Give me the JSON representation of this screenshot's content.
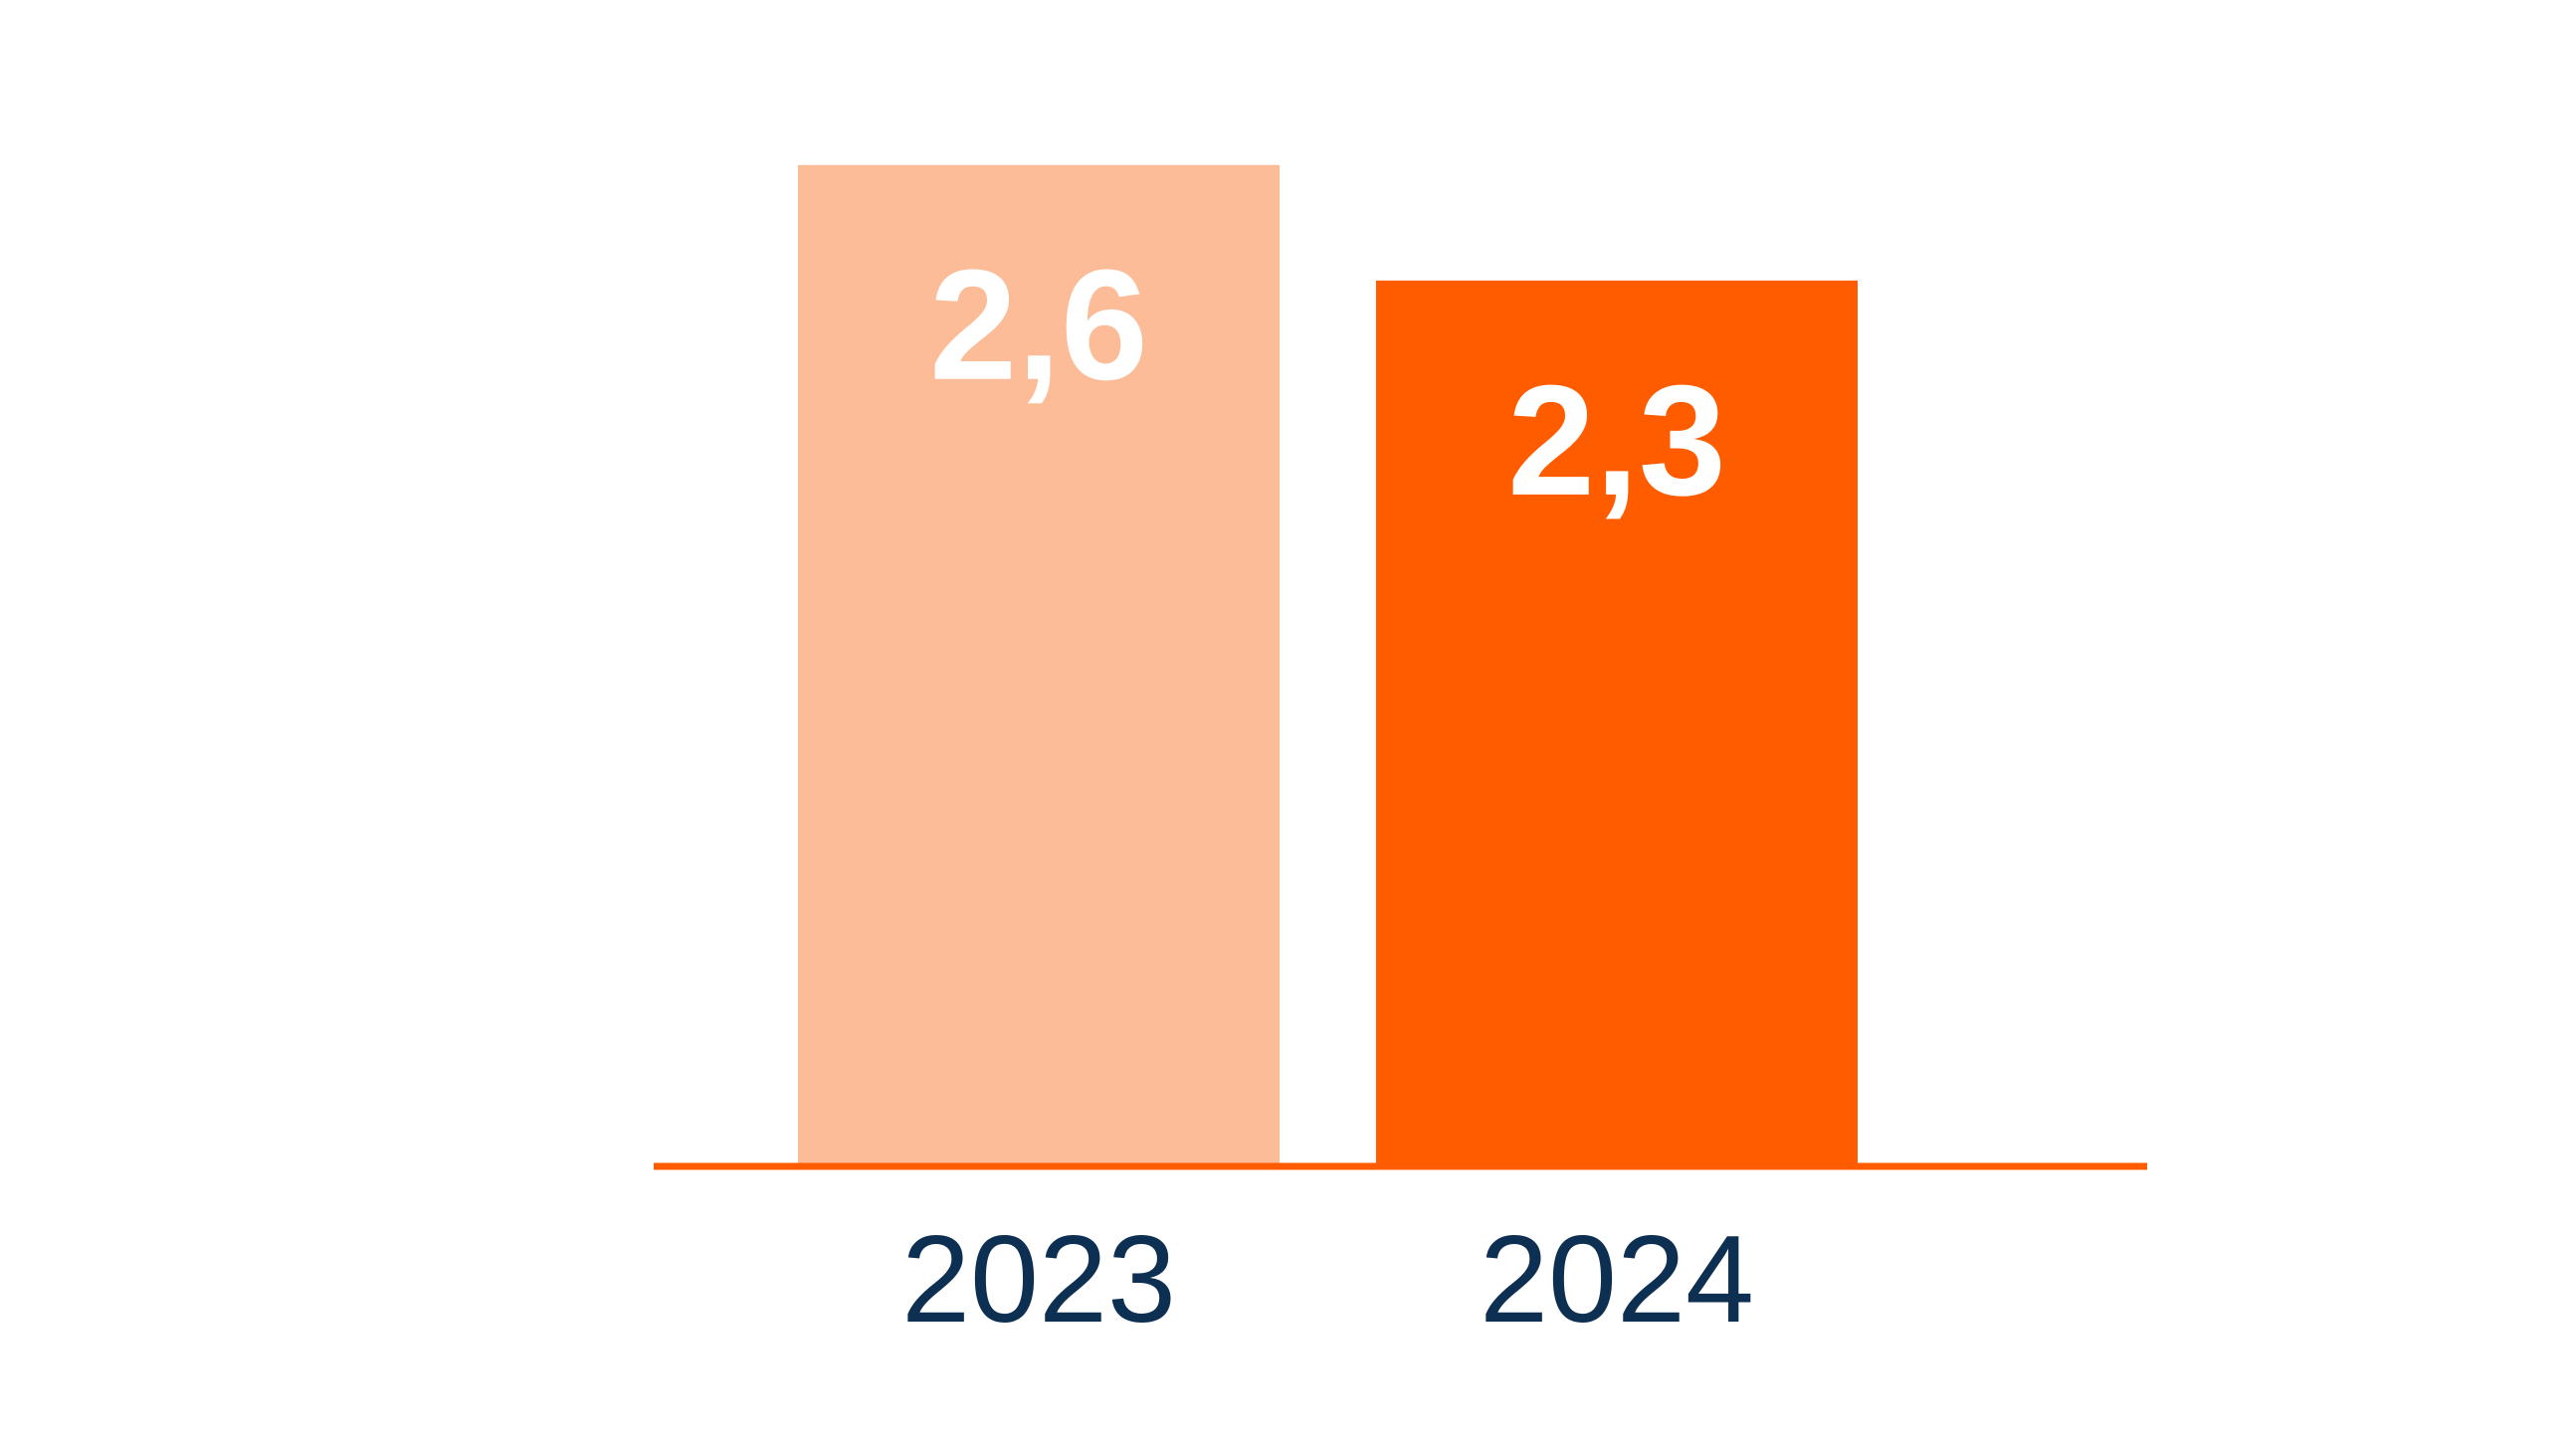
{
  "chart_data": {
    "type": "bar",
    "title": "",
    "xlabel": "",
    "ylabel": "",
    "categories": [
      "2023",
      "2024"
    ],
    "values": [
      2.6,
      2.3
    ],
    "value_labels": [
      "2,6",
      "2,3"
    ],
    "ylim": [
      0,
      3
    ],
    "grid": false,
    "colors": {
      "bars": [
        "#FDBC98",
        "#FF5C00"
      ],
      "axis_line": "#FF5C00",
      "value_label": "#FFFFFF",
      "category_label": "#0D2F52"
    }
  }
}
